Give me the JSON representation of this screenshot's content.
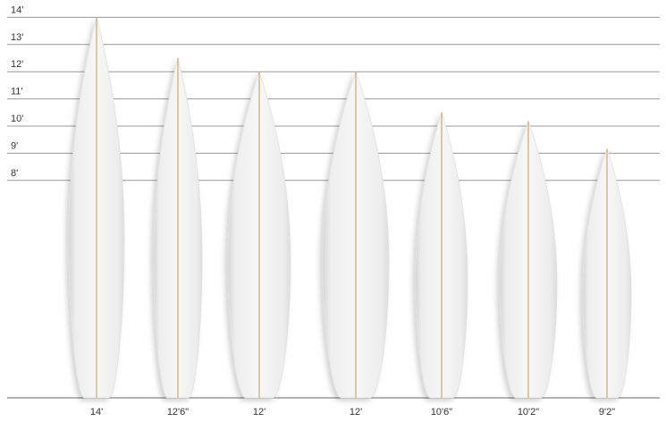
{
  "chart_data": {
    "type": "bar",
    "title": "",
    "xlabel": "",
    "ylabel": "",
    "y_unit": "feet",
    "ylim": [
      0,
      14
    ],
    "y_ticks": [
      8,
      9,
      10,
      11,
      12,
      13,
      14
    ],
    "y_tick_labels": [
      "8'",
      "9'",
      "10'",
      "11'",
      "12'",
      "13'",
      "14'"
    ],
    "grid": true,
    "categories": [
      "14'",
      "12'6\"",
      "12'",
      "12'",
      "10'6\"",
      "10'2\"",
      "9'2\""
    ],
    "values": [
      14,
      12.5,
      12,
      12,
      10.5,
      10.1667,
      9.1667
    ],
    "mark_shape": "surfboard silhouette",
    "colors": {
      "board": "#f2f2f2",
      "stringer": "#c8a068",
      "gridline": "#999999",
      "baseline": "#888888",
      "text": "#333333"
    }
  }
}
